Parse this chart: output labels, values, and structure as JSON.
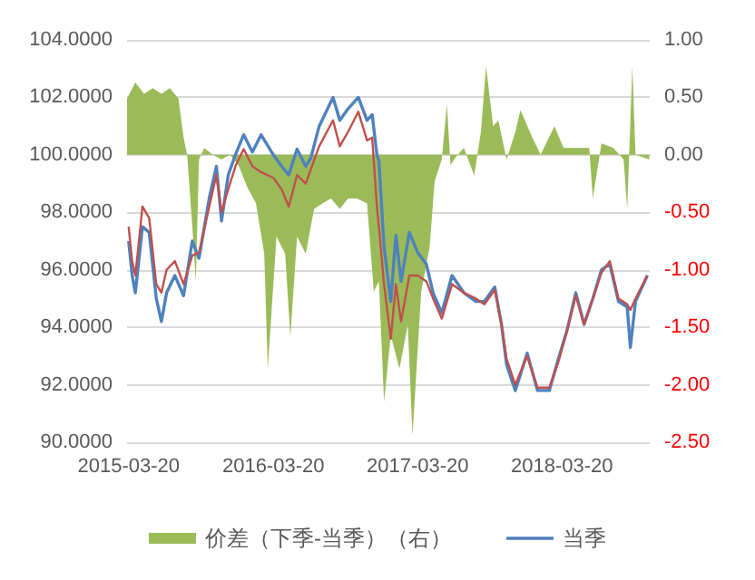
{
  "chart_data": {
    "type": "line",
    "x": [
      "2015-03-20",
      "2015-03-29",
      "2015-04-06",
      "2015-04-24",
      "2015-05-11",
      "2015-05-29",
      "2015-06-11",
      "2015-06-24",
      "2015-07-15",
      "2015-08-06",
      "2015-08-28",
      "2015-09-14",
      "2015-10-10",
      "2015-10-28",
      "2015-11-10",
      "2015-11-27",
      "2015-12-15",
      "2016-01-05",
      "2016-01-27",
      "2016-02-18",
      "2016-03-20",
      "2016-04-10",
      "2016-04-28",
      "2016-05-19",
      "2016-06-10",
      "2016-06-23",
      "2016-07-14",
      "2016-08-18",
      "2016-09-04",
      "2016-09-25",
      "2016-10-21",
      "2016-11-12",
      "2016-11-25",
      "2016-12-07",
      "2016-12-12",
      "2016-12-25",
      "2017-01-11",
      "2017-01-24",
      "2017-02-06",
      "2017-02-27",
      "2017-03-20",
      "2017-04-11",
      "2017-04-28",
      "2017-05-20",
      "2017-06-15",
      "2017-07-15",
      "2017-08-14",
      "2017-09-05",
      "2017-10-01",
      "2017-10-18",
      "2017-10-31",
      "2017-11-22",
      "2017-12-22",
      "2018-01-17",
      "2018-02-16",
      "2018-03-11",
      "2018-04-02",
      "2018-04-24",
      "2018-05-15",
      "2018-06-06",
      "2018-06-28",
      "2018-07-19",
      "2018-08-10",
      "2018-09-01",
      "2018-09-09",
      "2018-09-22",
      "2018-10-22"
    ],
    "series": [
      {
        "type": "area",
        "axis": "y2",
        "name": "价差（下季-当季）（右）",
        "color": "#9bbb59",
        "x": [
          "2015-03-16",
          "2015-04-06",
          "2015-04-28",
          "2015-05-20",
          "2015-06-11",
          "2015-07-02",
          "2015-07-24",
          "2015-08-06",
          "2015-08-15",
          "2015-08-28",
          "2015-09-06",
          "2015-09-14",
          "2015-09-27",
          "2015-10-19",
          "2015-11-10",
          "2015-12-01",
          "2015-12-23",
          "2016-01-14",
          "2016-02-05",
          "2016-02-26",
          "2016-03-06",
          "2016-03-28",
          "2016-04-19",
          "2016-05-02",
          "2016-05-19",
          "2016-06-10",
          "2016-07-01",
          "2016-07-23",
          "2016-08-13",
          "2016-09-04",
          "2016-09-25",
          "2016-10-17",
          "2016-11-12",
          "2016-11-29",
          "2016-12-12",
          "2016-12-25",
          "2017-01-11",
          "2017-02-02",
          "2017-02-23",
          "2017-03-07",
          "2017-03-29",
          "2017-04-19",
          "2017-05-02",
          "2017-05-20",
          "2017-06-02",
          "2017-06-11",
          "2017-06-24",
          "2017-07-15",
          "2017-08-10",
          "2017-08-27",
          "2017-09-09",
          "2017-09-27",
          "2017-10-10",
          "2017-10-31",
          "2017-11-22",
          "2017-12-05",
          "2018-01-04",
          "2018-01-25",
          "2018-03-01",
          "2018-03-24",
          "2018-04-24",
          "2018-05-28",
          "2018-06-06",
          "2018-06-28",
          "2018-07-28",
          "2018-08-23",
          "2018-09-01",
          "2018-09-14",
          "2018-09-22",
          "2018-10-27"
        ],
        "values": [
          0.49,
          0.63,
          0.53,
          0.58,
          0.53,
          0.58,
          0.49,
          0.15,
          0,
          -0.62,
          -1.1,
          -0.04,
          0.06,
          0,
          -0.04,
          0,
          -0.09,
          -0.28,
          -0.42,
          -0.86,
          -1.86,
          -0.71,
          -0.86,
          -1.58,
          -0.71,
          -0.86,
          -0.47,
          -0.42,
          -0.38,
          -0.47,
          -0.38,
          -0.38,
          -0.42,
          -1.19,
          -1.1,
          -2.15,
          -1.57,
          -1.86,
          -1.48,
          -2.44,
          -1.19,
          -0.81,
          -0.23,
          -0.04,
          0.44,
          -0.09,
          -0.02,
          0.06,
          -0.18,
          0.2,
          0.77,
          0.25,
          0.3,
          -0.04,
          0.2,
          0.39,
          0.15,
          0,
          0.25,
          0.06,
          0.06,
          0.06,
          -0.38,
          0.1,
          0.06,
          -0.04,
          -0.47,
          0.77,
          0,
          -0.04
        ]
      },
      {
        "name": "当季",
        "color": "#4f81bd",
        "values": [
          97.0,
          95.8,
          95.2,
          97.5,
          97.3,
          95.0,
          94.2,
          95.2,
          95.8,
          95.1,
          97.0,
          96.4,
          98.5,
          99.6,
          97.7,
          99.3,
          100.0,
          100.7,
          100.1,
          100.7,
          100.0,
          99.6,
          99.3,
          100.2,
          99.6,
          99.9,
          101.0,
          102.0,
          101.2,
          101.6,
          102.0,
          101.2,
          101.4,
          100.0,
          99.8,
          96.8,
          94.9,
          97.2,
          95.6,
          97.3,
          96.6,
          96.2,
          95.2,
          94.5,
          95.8,
          95.2,
          94.9,
          94.9,
          95.4,
          94.1,
          92.7,
          91.8,
          93.1,
          91.8,
          91.8,
          92.9,
          93.9,
          95.2,
          94.1,
          95.0,
          96.0,
          96.2,
          94.9,
          94.7,
          93.3,
          94.9,
          95.8
        ]
      },
      {
        "color": "#c0504d",
        "values": [
          97.5,
          96.3,
          95.8,
          98.2,
          97.8,
          95.5,
          95.2,
          96,
          96.3,
          95.5,
          96.5,
          96.6,
          98.2,
          99.3,
          98,
          98.8,
          99.6,
          100.2,
          99.6,
          99.4,
          99.2,
          98.8,
          98.2,
          99.3,
          99,
          99.5,
          100.3,
          101.2,
          100.3,
          100.8,
          101.5,
          100.5,
          100.6,
          98.2,
          97.5,
          95.5,
          93.6,
          95.5,
          94.2,
          95.8,
          95.8,
          95.6,
          95,
          94.3,
          95.5,
          95.2,
          95,
          94.8,
          95.3,
          94.1,
          92.9,
          92,
          93,
          91.9,
          91.9,
          92.8,
          93.9,
          95.1,
          94.1,
          95,
          95.9,
          96.3,
          95,
          94.8,
          94.6,
          95,
          95.8
        ]
      }
    ],
    "xlim": [
      "2015-03-16",
      "2018-10-28"
    ],
    "xticks": [
      "2015-03-20",
      "2016-03-20",
      "2017-03-20",
      "2018-03-20"
    ],
    "ylim": [
      90,
      104
    ],
    "yticks": [
      {
        "value": 90,
        "label": "90.0000"
      },
      {
        "value": 92,
        "label": "92.0000"
      },
      {
        "value": 94,
        "label": "94.0000"
      },
      {
        "value": 96,
        "label": "96.0000"
      },
      {
        "value": 98,
        "label": "98.0000"
      },
      {
        "value": 100,
        "label": "100.0000"
      },
      {
        "value": 102,
        "label": "102.0000"
      },
      {
        "value": 104,
        "label": "104.0000"
      }
    ],
    "y2lim": [
      -2.5,
      1
    ],
    "y2ticks": [
      {
        "value": -2.5,
        "label": "-2.50"
      },
      {
        "value": -2,
        "label": "-2.00"
      },
      {
        "value": -1.5,
        "label": "-1.50"
      },
      {
        "value": -1,
        "label": "-1.00"
      },
      {
        "value": -0.5,
        "label": "-0.50"
      },
      {
        "value": 0,
        "label": "0.00"
      },
      {
        "value": 0.5,
        "label": "0.50"
      },
      {
        "value": 1,
        "label": "1.00"
      }
    ],
    "grid": "y",
    "legend": "bottom",
    "marker": "none"
  }
}
